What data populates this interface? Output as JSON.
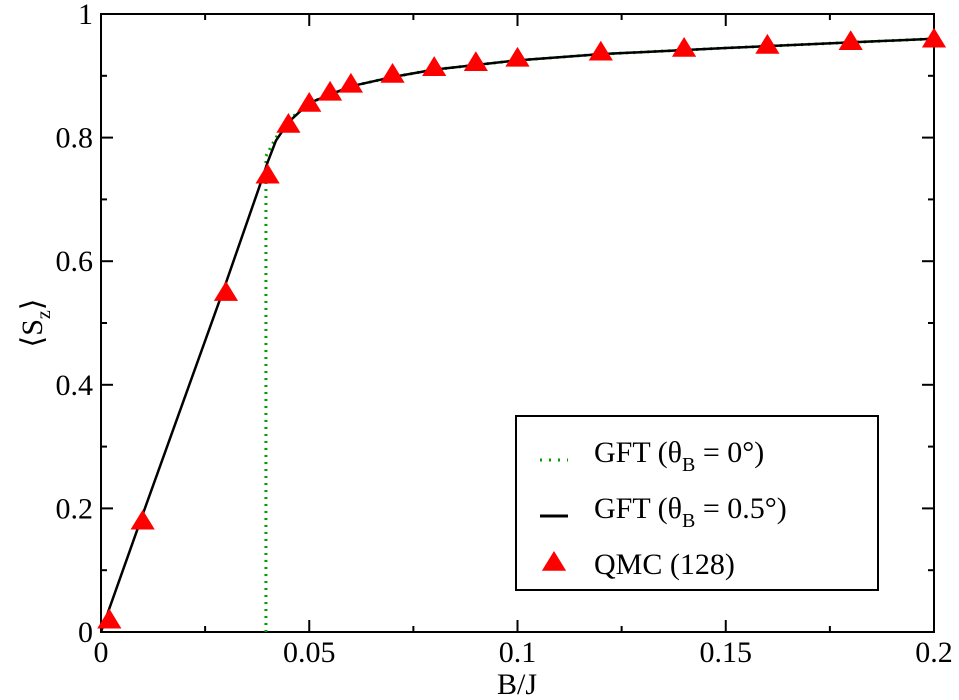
{
  "chart_data": {
    "type": "line",
    "x_label": "B/J",
    "y_label": [
      "⟨S",
      "z",
      "⟩"
    ],
    "xlim": [
      0,
      0.2
    ],
    "ylim": [
      0,
      1
    ],
    "xticks": [
      0,
      0.05,
      0.1,
      0.15,
      0.2
    ],
    "yticks": [
      0,
      0.2,
      0.4,
      0.6,
      0.8,
      1
    ],
    "legend": "lower right",
    "series": [
      {
        "name": "GFT (θB = 0°)",
        "color": "#00a000",
        "style": "dotted",
        "x": [
          0.0396,
          0.0396,
          0.042,
          0.045,
          0.05,
          0.06,
          0.07,
          0.08,
          0.1,
          0.12,
          0.15,
          0.2
        ],
        "values": [
          0,
          0.77,
          0.8,
          0.828,
          0.856,
          0.883,
          0.898,
          0.91,
          0.925,
          0.935,
          0.945,
          0.96
        ]
      },
      {
        "name": "GFT (θB = 0.5°)",
        "color": "#000000",
        "style": "solid",
        "x": [
          0,
          0.01,
          0.03,
          0.038,
          0.04,
          0.042,
          0.045,
          0.05,
          0.06,
          0.07,
          0.08,
          0.1,
          0.12,
          0.15,
          0.2
        ],
        "values": [
          0,
          0.19,
          0.565,
          0.72,
          0.76,
          0.795,
          0.825,
          0.856,
          0.883,
          0.898,
          0.91,
          0.925,
          0.935,
          0.945,
          0.96
        ]
      },
      {
        "name": "QMC (128)",
        "color": "#ff0000",
        "style": "triangle",
        "x": [
          0.002,
          0.01,
          0.03,
          0.04,
          0.045,
          0.05,
          0.055,
          0.06,
          0.07,
          0.08,
          0.09,
          0.1,
          0.12,
          0.14,
          0.16,
          0.18,
          0.2
        ],
        "values": [
          0.02,
          0.18,
          0.55,
          0.74,
          0.822,
          0.856,
          0.874,
          0.887,
          0.903,
          0.914,
          0.922,
          0.929,
          0.939,
          0.945,
          0.95,
          0.956,
          0.96
        ]
      }
    ]
  }
}
